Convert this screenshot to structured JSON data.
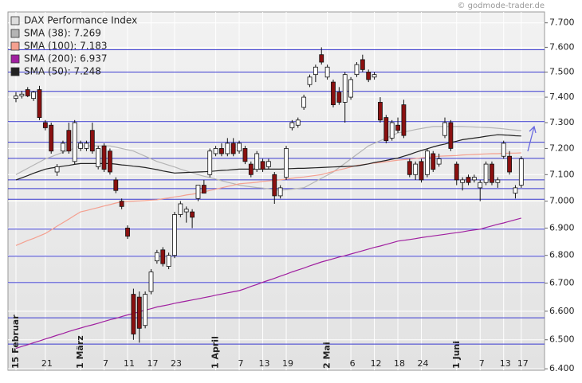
{
  "chart_data": {
    "type": "candlestick",
    "source": "© godmode-trader.de",
    "log_scale": true,
    "grid": true,
    "legend": "top-left",
    "ylim": [
      6395,
      7745
    ],
    "yticks": [
      {
        "value": 7700,
        "label": "7.700"
      },
      {
        "value": 7600,
        "label": "7.600"
      },
      {
        "value": 7500,
        "label": "7.500"
      },
      {
        "value": 7400,
        "label": "7.400"
      },
      {
        "value": 7300,
        "label": "7.300"
      },
      {
        "value": 7200,
        "label": "7.200"
      },
      {
        "value": 7100,
        "label": "7.100"
      },
      {
        "value": 7000,
        "label": "7.000"
      },
      {
        "value": 6900,
        "label": "6.900"
      },
      {
        "value": 6800,
        "label": "6.800"
      },
      {
        "value": 6700,
        "label": "6.700"
      },
      {
        "value": 6600,
        "label": "6.600"
      },
      {
        "value": 6500,
        "label": "6.500"
      },
      {
        "value": 6400,
        "label": "6.400"
      }
    ],
    "categories": [
      "15 Februar",
      null,
      null,
      null,
      null,
      "21",
      null,
      null,
      null,
      null,
      null,
      "1 März",
      null,
      null,
      null,
      "7",
      null,
      null,
      null,
      "11",
      null,
      null,
      null,
      "17",
      null,
      null,
      null,
      "23",
      null,
      null,
      null,
      null,
      null,
      null,
      "1 April",
      null,
      null,
      null,
      "7",
      null,
      null,
      null,
      "13",
      null,
      null,
      null,
      "19",
      null,
      null,
      null,
      null,
      null,
      null,
      "2 Mai",
      null,
      null,
      null,
      "6",
      null,
      null,
      null,
      "12",
      null,
      null,
      null,
      "18",
      null,
      null,
      null,
      "24",
      null,
      null,
      null,
      null,
      null,
      "1 Juni",
      null,
      null,
      null,
      "7",
      null,
      null,
      null,
      "13",
      null,
      null,
      "17"
    ],
    "candles": {
      "name": "DAX Performance Index",
      "up_color": "#ffffff",
      "down_color": "#8b1010",
      "legend_color": "#dddddd",
      "open": [
        7395,
        7405,
        7430,
        7395,
        7430,
        7300,
        7290,
        7110,
        7190,
        7270,
        7150,
        7200,
        7200,
        7270,
        7130,
        7210,
        7190,
        7080,
        7000,
        6900,
        6660,
        6650,
        6550,
        6670,
        6780,
        6820,
        6760,
        6800,
        6950,
        6960,
        6960,
        7010,
        7060,
        7100,
        7180,
        7200,
        7180,
        7220,
        7190,
        7200,
        7140,
        7120,
        7150,
        7130,
        7100,
        7020,
        7090,
        7280,
        7290,
        7360,
        7450,
        7490,
        7570,
        7480,
        7460,
        7420,
        7380,
        7400,
        7490,
        7550,
        7500,
        7480,
        7380,
        7320,
        7240,
        7290,
        7370,
        7150,
        7100,
        7150,
        7100,
        7180,
        7140,
        7250,
        7300,
        7140,
        7070,
        7090,
        7080,
        7050,
        7070,
        7140,
        7070,
        7170,
        7170,
        7030,
        7060
      ],
      "high": [
        7420,
        7425,
        7440,
        7425,
        7445,
        7310,
        7300,
        7140,
        7230,
        7300,
        7310,
        7230,
        7230,
        7300,
        7210,
        7220,
        7200,
        7090,
        7010,
        6910,
        6680,
        6670,
        6670,
        6750,
        6820,
        6830,
        6810,
        6960,
        7000,
        6980,
        6970,
        7060,
        7080,
        7200,
        7210,
        7220,
        7240,
        7240,
        7230,
        7210,
        7150,
        7190,
        7160,
        7160,
        7110,
        7060,
        7210,
        7310,
        7320,
        7410,
        7490,
        7530,
        7600,
        7530,
        7470,
        7440,
        7500,
        7480,
        7540,
        7570,
        7510,
        7500,
        7400,
        7330,
        7310,
        7320,
        7390,
        7160,
        7150,
        7160,
        7200,
        7190,
        7180,
        7320,
        7310,
        7150,
        7090,
        7100,
        7100,
        7080,
        7150,
        7150,
        7090,
        7230,
        7190,
        7060,
        7170
      ],
      "low": [
        7380,
        7395,
        7400,
        7385,
        7310,
        7270,
        7180,
        7095,
        7180,
        7180,
        7140,
        7190,
        7190,
        7180,
        7120,
        7110,
        7100,
        7030,
        6970,
        6860,
        6500,
        6490,
        6540,
        6660,
        6770,
        6760,
        6750,
        6790,
        6940,
        6920,
        6900,
        7000,
        7030,
        7090,
        7170,
        7170,
        7170,
        7170,
        7180,
        7140,
        7090,
        7110,
        7110,
        7120,
        6990,
        7010,
        7080,
        7270,
        7280,
        7350,
        7440,
        7460,
        7530,
        7470,
        7360,
        7370,
        7300,
        7390,
        7480,
        7500,
        7460,
        7470,
        7300,
        7220,
        7230,
        7260,
        7240,
        7090,
        7080,
        7070,
        7090,
        7110,
        7130,
        7240,
        7190,
        7060,
        7040,
        7060,
        7070,
        7000,
        7060,
        7060,
        7050,
        7160,
        7100,
        7010,
        7050
      ],
      "close": [
        7405,
        7412,
        7405,
        7420,
        7320,
        7280,
        7190,
        7130,
        7220,
        7190,
        7300,
        7220,
        7220,
        7190,
        7200,
        7120,
        7110,
        7040,
        6980,
        6870,
        6520,
        6540,
        6660,
        6740,
        6810,
        6770,
        6800,
        6950,
        6990,
        6970,
        6940,
        7060,
        7030,
        7190,
        7200,
        7180,
        7220,
        7180,
        7220,
        7150,
        7100,
        7180,
        7120,
        7150,
        7020,
        7050,
        7200,
        7300,
        7310,
        7400,
        7480,
        7520,
        7540,
        7520,
        7370,
        7380,
        7490,
        7470,
        7530,
        7510,
        7470,
        7490,
        7310,
        7230,
        7300,
        7270,
        7250,
        7100,
        7140,
        7080,
        7190,
        7120,
        7160,
        7300,
        7200,
        7080,
        7080,
        7070,
        7090,
        7070,
        7140,
        7070,
        7080,
        7220,
        7110,
        7050,
        7160
      ]
    },
    "series": [
      {
        "name": "SMA (38): 7.269",
        "color": "#b4b4b4",
        "values": [
          7100,
          7112,
          7124,
          7136,
          7148,
          7160,
          7168,
          7177,
          7185,
          7193,
          7202,
          7210,
          7210,
          7210,
          7210,
          7210,
          7210,
          7205,
          7200,
          7195,
          7190,
          7180,
          7170,
          7160,
          7150,
          7143,
          7136,
          7129,
          7121,
          7114,
          7107,
          7100,
          7094,
          7089,
          7083,
          7077,
          7071,
          7066,
          7060,
          7057,
          7054,
          7051,
          7049,
          7046,
          7043,
          7040,
          7043,
          7045,
          7048,
          7050,
          7062,
          7074,
          7086,
          7098,
          7110,
          7127,
          7143,
          7160,
          7177,
          7193,
          7210,
          7220,
          7230,
          7240,
          7250,
          7260,
          7264,
          7268,
          7273,
          7277,
          7281,
          7285,
          7285,
          7285,
          7285,
          7285,
          7285,
          7284,
          7283,
          7282,
          7281,
          7280,
          7278,
          7276,
          7273,
          7271,
          7269
        ]
      },
      {
        "name": "SMA (100): 7.183",
        "color": "#f4a090",
        "values": [
          6836,
          6845,
          6854,
          6862,
          6871,
          6880,
          6893,
          6907,
          6920,
          6933,
          6947,
          6960,
          6965,
          6971,
          6976,
          6982,
          6987,
          6993,
          6998,
          6999,
          7000,
          7001,
          7002,
          7004,
          7005,
          7009,
          7012,
          7016,
          7019,
          7023,
          7026,
          7030,
          7035,
          7040,
          7045,
          7050,
          7055,
          7060,
          7065,
          7067,
          7069,
          7071,
          7074,
          7076,
          7078,
          7080,
          7083,
          7086,
          7089,
          7091,
          7094,
          7097,
          7100,
          7106,
          7112,
          7118,
          7123,
          7129,
          7135,
          7138,
          7141,
          7144,
          7146,
          7149,
          7152,
          7155,
          7157,
          7159,
          7161,
          7164,
          7166,
          7168,
          7170,
          7171,
          7172,
          7173,
          7175,
          7176,
          7177,
          7178,
          7179,
          7180,
          7180,
          7181,
          7182,
          7182,
          7183
        ]
      },
      {
        "name": "SMA (200): 6.937",
        "color": "#a020a0",
        "values": [
          6470,
          6477,
          6483,
          6490,
          6496,
          6503,
          6509,
          6516,
          6522,
          6529,
          6535,
          6541,
          6547,
          6552,
          6558,
          6564,
          6570,
          6575,
          6581,
          6587,
          6592,
          6598,
          6604,
          6609,
          6615,
          6619,
          6623,
          6628,
          6632,
          6636,
          6640,
          6644,
          6648,
          6652,
          6657,
          6661,
          6665,
          6669,
          6673,
          6680,
          6688,
          6695,
          6703,
          6710,
          6717,
          6725,
          6732,
          6740,
          6747,
          6754,
          6762,
          6769,
          6776,
          6782,
          6788,
          6794,
          6799,
          6805,
          6811,
          6817,
          6823,
          6829,
          6834,
          6840,
          6846,
          6852,
          6855,
          6858,
          6861,
          6865,
          6868,
          6871,
          6874,
          6877,
          6880,
          6883,
          6886,
          6890,
          6893,
          6896,
          6902,
          6908,
          6914,
          6919,
          6925,
          6931,
          6937
        ]
      },
      {
        "name": "SMA (50): 7.248",
        "color": "#222222",
        "values": [
          7080,
          7088,
          7096,
          7105,
          7113,
          7121,
          7125,
          7128,
          7132,
          7135,
          7139,
          7142,
          7142,
          7142,
          7142,
          7142,
          7142,
          7140,
          7137,
          7135,
          7132,
          7130,
          7127,
          7123,
          7119,
          7114,
          7110,
          7106,
          7107,
          7108,
          7109,
          7110,
          7111,
          7112,
          7114,
          7116,
          7117,
          7119,
          7121,
          7121,
          7121,
          7121,
          7121,
          7121,
          7121,
          7121,
          7122,
          7123,
          7124,
          7124,
          7125,
          7126,
          7127,
          7128,
          7129,
          7130,
          7131,
          7132,
          7133,
          7137,
          7141,
          7146,
          7150,
          7154,
          7159,
          7163,
          7170,
          7177,
          7185,
          7192,
          7199,
          7206,
          7212,
          7217,
          7223,
          7228,
          7234,
          7237,
          7240,
          7243,
          7247,
          7250,
          7253,
          7252,
          7251,
          7249,
          7248
        ]
      }
    ],
    "levels": [
      7590,
      7500,
      7423,
      7304,
      7224,
      7162,
      7080,
      7047,
      7007,
      6896,
      6797,
      6702,
      6577,
      6485
    ],
    "level_color": "#3a3ad0"
  }
}
